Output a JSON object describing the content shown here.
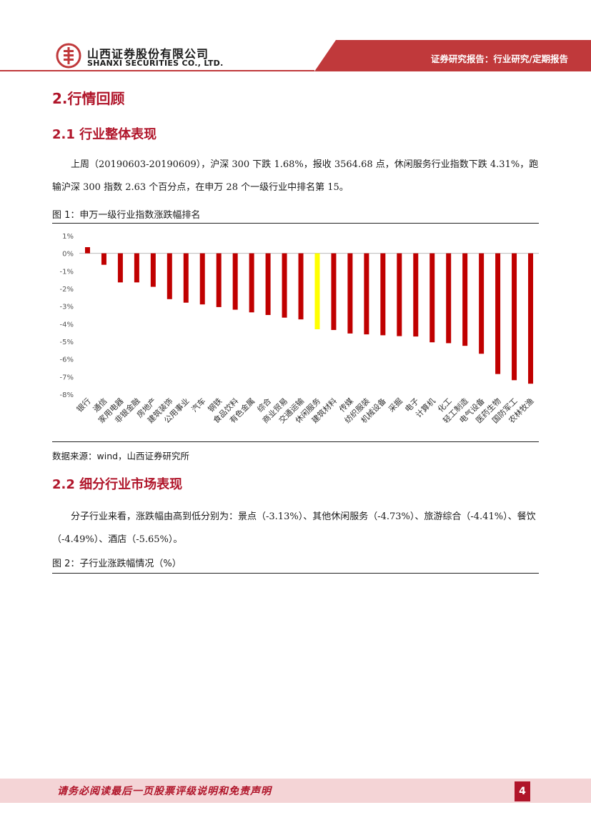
{
  "header": {
    "company_cn": "山西证券股份有限公司",
    "company_en": "SHANXI SECURITIES CO., LTD.",
    "report_type": "证券研究报告：行业研究/定期报告"
  },
  "section2": {
    "title": "2.行情回顾"
  },
  "section21": {
    "title": "2.1 行业整体表现",
    "paragraph": "上周（20190603-20190609），沪深 300 下跌 1.68%，报收 3564.68 点，休闲服务行业指数下跌 4.31%，跑输沪深 300 指数 2.63 个百分点，在申万 28 个一级行业中排名第 15。"
  },
  "figure1": {
    "title": "图 1：申万一级行业指数涨跌幅排名",
    "source": "数据来源：wind，山西证券研究所"
  },
  "section22": {
    "title": "2.2 细分行业市场表现",
    "paragraph": "分子行业来看，涨跌幅由高到低分别为：景点（-3.13%）、其他休闲服务（-4.73%）、旅游综合（-4.41%）、餐饮（-4.49%）、酒店（-5.65%）。"
  },
  "figure2": {
    "title": "图 2：子行业涨跌幅情况（%）"
  },
  "footer": {
    "disclaimer": "请务必阅读最后一页股票评级说明和免责声明",
    "page": "4"
  },
  "colors": {
    "brand": "#b0152a",
    "bar": "#c00000",
    "highlight": "#ffff00"
  },
  "chart_data": {
    "type": "bar",
    "title": "申万一级行业指数涨跌幅排名",
    "categories": [
      "银行",
      "通信",
      "家用电器",
      "非银金融",
      "房地产",
      "建筑装饰",
      "公用事业",
      "汽车",
      "钢铁",
      "食品饮料",
      "有色金属",
      "综合",
      "商业贸易",
      "交通运输",
      "休闲服务",
      "建筑材料",
      "传媒",
      "纺织服装",
      "机械设备",
      "采掘",
      "电子",
      "计算机",
      "化工",
      "轻工制造",
      "电气设备",
      "医药生物",
      "国防军工",
      "农林牧渔"
    ],
    "values": [
      0.35,
      -0.65,
      -1.65,
      -1.65,
      -1.9,
      -2.6,
      -2.8,
      -2.9,
      -3.05,
      -3.2,
      -3.35,
      -3.5,
      -3.65,
      -3.75,
      -4.31,
      -4.35,
      -4.55,
      -4.6,
      -4.65,
      -4.7,
      -4.72,
      -5.05,
      -5.1,
      -5.25,
      -5.7,
      -6.85,
      -7.2,
      -7.4
    ],
    "highlight": "休闲服务",
    "yticks": [
      "1%",
      "0%",
      "-1%",
      "-2%",
      "-3%",
      "-4%",
      "-5%",
      "-6%",
      "-7%",
      "-8%"
    ],
    "ylim": [
      -8,
      1
    ],
    "xlabel": "",
    "ylabel": ""
  }
}
